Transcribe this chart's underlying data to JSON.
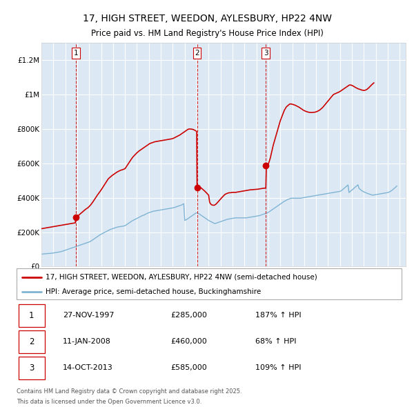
{
  "title1": "17, HIGH STREET, WEEDON, AYLESBURY, HP22 4NW",
  "title2": "Price paid vs. HM Land Registry's House Price Index (HPI)",
  "legend_property": "17, HIGH STREET, WEEDON, AYLESBURY, HP22 4NW (semi-detached house)",
  "legend_hpi": "HPI: Average price, semi-detached house, Buckinghamshire",
  "footer1": "Contains HM Land Registry data © Crown copyright and database right 2025.",
  "footer2": "This data is licensed under the Open Government Licence v3.0.",
  "transactions": [
    {
      "num": 1,
      "date": "27-NOV-1997",
      "price": 285000,
      "note": "187% ↑ HPI"
    },
    {
      "num": 2,
      "date": "11-JAN-2008",
      "price": 460000,
      "note": "68% ↑ HPI"
    },
    {
      "num": 3,
      "date": "14-OCT-2013",
      "price": 585000,
      "note": "109% ↑ HPI"
    }
  ],
  "transaction_dates_decimal": [
    1997.9,
    2008.03,
    2013.79
  ],
  "transaction_prices": [
    285000,
    460000,
    585000
  ],
  "bg_color": "#dce9f5",
  "property_color": "#cc0000",
  "hpi_color": "#7fb3d3",
  "grid_color": "#ffffff",
  "vline_color": "#cc0000",
  "ylim": [
    0,
    1300000
  ],
  "yticks": [
    0,
    200000,
    400000,
    600000,
    800000,
    1000000,
    1200000
  ],
  "ytick_labels": [
    "£0",
    "£200K",
    "£400K",
    "£600K",
    "£800K",
    "£1M",
    "£1.2M"
  ],
  "xlim_start": 1995.0,
  "xlim_end": 2025.5,
  "hpi_dates": [
    1995.0,
    1995.083,
    1995.167,
    1995.25,
    1995.333,
    1995.417,
    1995.5,
    1995.583,
    1995.667,
    1995.75,
    1995.833,
    1995.917,
    1996.0,
    1996.083,
    1996.167,
    1996.25,
    1996.333,
    1996.417,
    1996.5,
    1996.583,
    1996.667,
    1996.75,
    1996.833,
    1996.917,
    1997.0,
    1997.083,
    1997.167,
    1997.25,
    1997.333,
    1997.417,
    1997.5,
    1997.583,
    1997.667,
    1997.75,
    1997.833,
    1997.917,
    1998.0,
    1998.083,
    1998.167,
    1998.25,
    1998.333,
    1998.417,
    1998.5,
    1998.583,
    1998.667,
    1998.75,
    1998.833,
    1998.917,
    1999.0,
    1999.083,
    1999.167,
    1999.25,
    1999.333,
    1999.417,
    1999.5,
    1999.583,
    1999.667,
    1999.75,
    1999.833,
    1999.917,
    2000.0,
    2000.083,
    2000.167,
    2000.25,
    2000.333,
    2000.417,
    2000.5,
    2000.583,
    2000.667,
    2000.75,
    2000.833,
    2000.917,
    2001.0,
    2001.083,
    2001.167,
    2001.25,
    2001.333,
    2001.417,
    2001.5,
    2001.583,
    2001.667,
    2001.75,
    2001.833,
    2001.917,
    2002.0,
    2002.083,
    2002.167,
    2002.25,
    2002.333,
    2002.417,
    2002.5,
    2002.583,
    2002.667,
    2002.75,
    2002.833,
    2002.917,
    2003.0,
    2003.083,
    2003.167,
    2003.25,
    2003.333,
    2003.417,
    2003.5,
    2003.583,
    2003.667,
    2003.75,
    2003.833,
    2003.917,
    2004.0,
    2004.083,
    2004.167,
    2004.25,
    2004.333,
    2004.417,
    2004.5,
    2004.583,
    2004.667,
    2004.75,
    2004.833,
    2004.917,
    2005.0,
    2005.083,
    2005.167,
    2005.25,
    2005.333,
    2005.417,
    2005.5,
    2005.583,
    2005.667,
    2005.75,
    2005.833,
    2005.917,
    2006.0,
    2006.083,
    2006.167,
    2006.25,
    2006.333,
    2006.417,
    2006.5,
    2006.583,
    2006.667,
    2006.75,
    2006.833,
    2006.917,
    2007.0,
    2007.083,
    2007.167,
    2007.25,
    2007.333,
    2007.417,
    2007.5,
    2007.583,
    2007.667,
    2007.75,
    2007.833,
    2007.917,
    2008.0,
    2008.083,
    2008.167,
    2008.25,
    2008.333,
    2008.417,
    2008.5,
    2008.583,
    2008.667,
    2008.75,
    2008.833,
    2008.917,
    2009.0,
    2009.083,
    2009.167,
    2009.25,
    2009.333,
    2009.417,
    2009.5,
    2009.583,
    2009.667,
    2009.75,
    2009.833,
    2009.917,
    2010.0,
    2010.083,
    2010.167,
    2010.25,
    2010.333,
    2010.417,
    2010.5,
    2010.583,
    2010.667,
    2010.75,
    2010.833,
    2010.917,
    2011.0,
    2011.083,
    2011.167,
    2011.25,
    2011.333,
    2011.417,
    2011.5,
    2011.583,
    2011.667,
    2011.75,
    2011.833,
    2011.917,
    2012.0,
    2012.083,
    2012.167,
    2012.25,
    2012.333,
    2012.417,
    2012.5,
    2012.583,
    2012.667,
    2012.75,
    2012.833,
    2012.917,
    2013.0,
    2013.083,
    2013.167,
    2013.25,
    2013.333,
    2013.417,
    2013.5,
    2013.583,
    2013.667,
    2013.75,
    2013.833,
    2013.917,
    2014.0,
    2014.083,
    2014.167,
    2014.25,
    2014.333,
    2014.417,
    2014.5,
    2014.583,
    2014.667,
    2014.75,
    2014.833,
    2014.917,
    2015.0,
    2015.083,
    2015.167,
    2015.25,
    2015.333,
    2015.417,
    2015.5,
    2015.583,
    2015.667,
    2015.75,
    2015.833,
    2015.917,
    2016.0,
    2016.083,
    2016.167,
    2016.25,
    2016.333,
    2016.417,
    2016.5,
    2016.583,
    2016.667,
    2016.75,
    2016.833,
    2016.917,
    2017.0,
    2017.083,
    2017.167,
    2017.25,
    2017.333,
    2017.417,
    2017.5,
    2017.583,
    2017.667,
    2017.75,
    2017.833,
    2017.917,
    2018.0,
    2018.083,
    2018.167,
    2018.25,
    2018.333,
    2018.417,
    2018.5,
    2018.583,
    2018.667,
    2018.75,
    2018.833,
    2018.917,
    2019.0,
    2019.083,
    2019.167,
    2019.25,
    2019.333,
    2019.417,
    2019.5,
    2019.583,
    2019.667,
    2019.75,
    2019.833,
    2019.917,
    2020.0,
    2020.083,
    2020.167,
    2020.25,
    2020.333,
    2020.417,
    2020.5,
    2020.583,
    2020.667,
    2020.75,
    2020.833,
    2020.917,
    2021.0,
    2021.083,
    2021.167,
    2021.25,
    2021.333,
    2021.417,
    2021.5,
    2021.583,
    2021.667,
    2021.75,
    2021.833,
    2021.917,
    2022.0,
    2022.083,
    2022.167,
    2022.25,
    2022.333,
    2022.417,
    2022.5,
    2022.583,
    2022.667,
    2022.75,
    2022.833,
    2022.917,
    2023.0,
    2023.083,
    2023.167,
    2023.25,
    2023.333,
    2023.417,
    2023.5,
    2023.583,
    2023.667,
    2023.75,
    2023.833,
    2023.917,
    2024.0,
    2024.083,
    2024.167,
    2024.25,
    2024.333,
    2024.417,
    2024.5,
    2024.583,
    2024.667,
    2024.75,
    2024.833,
    2024.917,
    2025.0
  ],
  "hpi_values": [
    72000,
    73000,
    73500,
    74000,
    74500,
    75000,
    75500,
    76000,
    76500,
    77000,
    77500,
    78000,
    79000,
    80000,
    81000,
    82000,
    83000,
    84000,
    85000,
    86000,
    87500,
    89000,
    91000,
    93000,
    95000,
    97000,
    99000,
    101000,
    103000,
    105000,
    107000,
    109000,
    111000,
    113000,
    115000,
    117000,
    119000,
    121000,
    123000,
    125000,
    127000,
    129000,
    131000,
    133000,
    135000,
    137000,
    139000,
    141000,
    143000,
    146000,
    149000,
    153000,
    157000,
    161000,
    165000,
    169000,
    173000,
    177000,
    181000,
    185000,
    188000,
    191000,
    194000,
    197000,
    200000,
    203000,
    206000,
    209000,
    212000,
    215000,
    217000,
    219000,
    221000,
    223000,
    225000,
    227000,
    229000,
    230000,
    231000,
    232000,
    233000,
    234000,
    235000,
    236000,
    238000,
    241000,
    245000,
    249000,
    253000,
    257000,
    261000,
    265000,
    268000,
    271000,
    274000,
    277000,
    280000,
    283000,
    286000,
    289000,
    292000,
    295000,
    297000,
    299000,
    302000,
    305000,
    308000,
    311000,
    313000,
    315000,
    317000,
    319000,
    321000,
    322000,
    323000,
    324000,
    325000,
    326000,
    327000,
    328000,
    329000,
    330000,
    331000,
    332000,
    333000,
    334000,
    335000,
    336000,
    337000,
    338000,
    339000,
    340000,
    341000,
    342000,
    344000,
    346000,
    348000,
    350000,
    352000,
    354000,
    356000,
    358000,
    362000,
    365000,
    268000,
    271000,
    274000,
    278000,
    282000,
    286000,
    290000,
    294000,
    298000,
    302000,
    306000,
    310000,
    313000,
    310000,
    307000,
    304000,
    300000,
    296000,
    292000,
    288000,
    284000,
    280000,
    276000,
    272000,
    268000,
    265000,
    262000,
    259000,
    256000,
    253000,
    250000,
    251000,
    253000,
    255000,
    257000,
    259000,
    261000,
    263000,
    265000,
    267000,
    269000,
    271000,
    273000,
    275000,
    276000,
    277000,
    278000,
    279000,
    280000,
    281000,
    282000,
    283000,
    283000,
    283000,
    283000,
    283000,
    283000,
    283000,
    283000,
    283000,
    283000,
    283000,
    283000,
    284000,
    285000,
    286000,
    287000,
    288000,
    289000,
    290000,
    291000,
    292000,
    293000,
    294000,
    295000,
    296000,
    298000,
    300000,
    302000,
    304000,
    306000,
    308000,
    310000,
    312000,
    315000,
    319000,
    323000,
    327000,
    331000,
    335000,
    339000,
    343000,
    347000,
    351000,
    355000,
    359000,
    363000,
    367000,
    371000,
    375000,
    379000,
    382000,
    385000,
    388000,
    391000,
    393000,
    395000,
    397000,
    397000,
    397000,
    397000,
    397000,
    397000,
    397000,
    397000,
    397000,
    397000,
    398000,
    399000,
    400000,
    401000,
    402000,
    403000,
    404000,
    405000,
    406000,
    407000,
    408000,
    409000,
    410000,
    411000,
    412000,
    413000,
    414000,
    415000,
    416000,
    417000,
    418000,
    419000,
    420000,
    421000,
    422000,
    423000,
    424000,
    425000,
    426000,
    427000,
    428000,
    429000,
    430000,
    431000,
    432000,
    433000,
    434000,
    435000,
    436000,
    437000,
    440000,
    444000,
    449000,
    454000,
    459000,
    464000,
    469000,
    474000,
    430000,
    435000,
    440000,
    445000,
    450000,
    455000,
    460000,
    465000,
    470000,
    475000,
    455000,
    450000,
    445000,
    440000,
    437000,
    434000,
    431000,
    429000,
    426000,
    424000,
    422000,
    420000,
    418000,
    416000,
    415000,
    416000,
    417000,
    418000,
    419000,
    420000,
    421000,
    422000,
    423000,
    424000,
    425000,
    426000,
    427000,
    428000,
    429000,
    430000,
    432000,
    435000,
    438000,
    442000,
    447000,
    452000,
    457000,
    462000,
    468000
  ],
  "prop_dates": [
    1995.0,
    1995.083,
    1995.167,
    1995.25,
    1995.333,
    1995.417,
    1995.5,
    1995.583,
    1995.667,
    1995.75,
    1995.833,
    1995.917,
    1996.0,
    1996.083,
    1996.167,
    1996.25,
    1996.333,
    1996.417,
    1996.5,
    1996.583,
    1996.667,
    1996.75,
    1996.833,
    1996.917,
    1997.0,
    1997.083,
    1997.167,
    1997.25,
    1997.333,
    1997.417,
    1997.5,
    1997.583,
    1997.667,
    1997.75,
    1997.833,
    1997.9,
    1997.917,
    1998.0,
    1998.083,
    1998.167,
    1998.25,
    1998.333,
    1998.417,
    1998.5,
    1998.583,
    1998.667,
    1998.75,
    1998.833,
    1998.917,
    1999.0,
    1999.083,
    1999.167,
    1999.25,
    1999.333,
    1999.417,
    1999.5,
    1999.583,
    1999.667,
    1999.75,
    1999.833,
    1999.917,
    2000.0,
    2000.083,
    2000.167,
    2000.25,
    2000.333,
    2000.417,
    2000.5,
    2000.583,
    2000.667,
    2000.75,
    2000.833,
    2000.917,
    2001.0,
    2001.083,
    2001.167,
    2001.25,
    2001.333,
    2001.417,
    2001.5,
    2001.583,
    2001.667,
    2001.75,
    2001.833,
    2001.917,
    2002.0,
    2002.083,
    2002.167,
    2002.25,
    2002.333,
    2002.417,
    2002.5,
    2002.583,
    2002.667,
    2002.75,
    2002.833,
    2002.917,
    2003.0,
    2003.083,
    2003.167,
    2003.25,
    2003.333,
    2003.417,
    2003.5,
    2003.583,
    2003.667,
    2003.75,
    2003.833,
    2003.917,
    2004.0,
    2004.083,
    2004.167,
    2004.25,
    2004.333,
    2004.417,
    2004.5,
    2004.583,
    2004.667,
    2004.75,
    2004.833,
    2004.917,
    2005.0,
    2005.083,
    2005.167,
    2005.25,
    2005.333,
    2005.417,
    2005.5,
    2005.583,
    2005.667,
    2005.75,
    2005.833,
    2005.917,
    2006.0,
    2006.083,
    2006.167,
    2006.25,
    2006.333,
    2006.417,
    2006.5,
    2006.583,
    2006.667,
    2006.75,
    2006.833,
    2006.917,
    2007.0,
    2007.083,
    2007.167,
    2007.25,
    2007.333,
    2007.417,
    2007.5,
    2007.583,
    2007.667,
    2007.75,
    2007.833,
    2007.917,
    2008.0,
    2008.03,
    2008.083,
    2008.167,
    2008.25,
    2008.333,
    2008.417,
    2008.5,
    2008.583,
    2008.667,
    2008.75,
    2008.833,
    2008.917,
    2009.0,
    2009.083,
    2009.167,
    2009.25,
    2009.333,
    2009.417,
    2009.5,
    2009.583,
    2009.667,
    2009.75,
    2009.833,
    2009.917,
    2010.0,
    2010.083,
    2010.167,
    2010.25,
    2010.333,
    2010.417,
    2010.5,
    2010.583,
    2010.667,
    2010.75,
    2010.833,
    2010.917,
    2011.0,
    2011.083,
    2011.167,
    2011.25,
    2011.333,
    2011.417,
    2011.5,
    2011.583,
    2011.667,
    2011.75,
    2011.833,
    2011.917,
    2012.0,
    2012.083,
    2012.167,
    2012.25,
    2012.333,
    2012.417,
    2012.5,
    2012.583,
    2012.667,
    2012.75,
    2012.833,
    2012.917,
    2013.0,
    2013.083,
    2013.167,
    2013.25,
    2013.333,
    2013.417,
    2013.5,
    2013.583,
    2013.667,
    2013.75,
    2013.79,
    2013.833,
    2013.917,
    2014.0,
    2014.083,
    2014.167,
    2014.25,
    2014.333,
    2014.417,
    2014.5,
    2014.583,
    2014.667,
    2014.75,
    2014.833,
    2014.917,
    2015.0,
    2015.083,
    2015.167,
    2015.25,
    2015.333,
    2015.417,
    2015.5,
    2015.583,
    2015.667,
    2015.75,
    2015.833,
    2015.917,
    2016.0,
    2016.083,
    2016.167,
    2016.25,
    2016.333,
    2016.417,
    2016.5,
    2016.583,
    2016.667,
    2016.75,
    2016.833,
    2016.917,
    2017.0,
    2017.083,
    2017.167,
    2017.25,
    2017.333,
    2017.417,
    2017.5,
    2017.583,
    2017.667,
    2017.75,
    2017.833,
    2017.917,
    2018.0,
    2018.083,
    2018.167,
    2018.25,
    2018.333,
    2018.417,
    2018.5,
    2018.583,
    2018.667,
    2018.75,
    2018.833,
    2018.917,
    2019.0,
    2019.083,
    2019.167,
    2019.25,
    2019.333,
    2019.417,
    2019.5,
    2019.583,
    2019.667,
    2019.75,
    2019.833,
    2019.917,
    2020.0,
    2020.083,
    2020.167,
    2020.25,
    2020.333,
    2020.417,
    2020.5,
    2020.583,
    2020.667,
    2020.75,
    2020.833,
    2020.917,
    2021.0,
    2021.083,
    2021.167,
    2021.25,
    2021.333,
    2021.417,
    2021.5,
    2021.583,
    2021.667,
    2021.75,
    2021.833,
    2021.917,
    2022.0,
    2022.083,
    2022.167,
    2022.25,
    2022.333,
    2022.417,
    2022.5,
    2022.583,
    2022.667,
    2022.75,
    2022.833,
    2022.917,
    2023.0,
    2023.083,
    2023.167,
    2023.25,
    2023.333,
    2023.417,
    2023.5,
    2023.583,
    2023.667,
    2023.75,
    2023.833,
    2023.917,
    2024.0,
    2024.083,
    2024.167,
    2024.25,
    2024.333,
    2024.417,
    2024.5,
    2024.583,
    2024.667,
    2024.75,
    2024.833,
    2024.917,
    2025.0
  ],
  "prop_values": [
    220000,
    221000,
    222000,
    223000,
    224000,
    225000,
    226000,
    227000,
    228000,
    229000,
    230000,
    231000,
    232000,
    233000,
    234000,
    235000,
    236000,
    237000,
    238000,
    239000,
    240000,
    241000,
    242000,
    243000,
    244000,
    245000,
    246000,
    247000,
    248000,
    249000,
    250000,
    251000,
    252000,
    253000,
    254000,
    285000,
    287000,
    291000,
    296000,
    301000,
    306000,
    311000,
    316000,
    321000,
    326000,
    331000,
    335000,
    339000,
    343000,
    349000,
    355000,
    362000,
    370000,
    378000,
    387000,
    396000,
    405000,
    413000,
    421000,
    429000,
    437000,
    445000,
    454000,
    463000,
    472000,
    481000,
    490000,
    499000,
    508000,
    514000,
    519000,
    524000,
    529000,
    533000,
    537000,
    541000,
    545000,
    549000,
    552000,
    555000,
    558000,
    560000,
    562000,
    564000,
    566000,
    569000,
    577000,
    586000,
    595000,
    604000,
    613000,
    621000,
    629000,
    637000,
    643000,
    649000,
    655000,
    661000,
    666000,
    671000,
    675000,
    679000,
    683000,
    687000,
    691000,
    695000,
    699000,
    703000,
    707000,
    711000,
    715000,
    717000,
    719000,
    721000,
    723000,
    725000,
    726000,
    727000,
    728000,
    729000,
    730000,
    731000,
    732000,
    733000,
    734000,
    735000,
    736000,
    737000,
    738000,
    739000,
    740000,
    741000,
    742000,
    744000,
    746000,
    749000,
    752000,
    755000,
    758000,
    761000,
    764000,
    768000,
    772000,
    776000,
    780000,
    784000,
    788000,
    792000,
    796000,
    799000,
    799000,
    799000,
    798000,
    797000,
    795000,
    792000,
    789000,
    784000,
    460000,
    462000,
    463000,
    461000,
    459000,
    454000,
    449000,
    444000,
    439000,
    433000,
    427000,
    421000,
    415000,
    374000,
    364000,
    359000,
    357000,
    356000,
    357000,
    361000,
    366000,
    373000,
    379000,
    386000,
    392000,
    399000,
    405000,
    411000,
    417000,
    421000,
    424000,
    426000,
    428000,
    429000,
    429000,
    430000,
    431000,
    431000,
    431000,
    431000,
    432000,
    433000,
    434000,
    435000,
    436000,
    437000,
    438000,
    439000,
    440000,
    441000,
    442000,
    443000,
    444000,
    445000,
    446000,
    446000,
    447000,
    447000,
    448000,
    448000,
    449000,
    449000,
    450000,
    451000,
    452000,
    453000,
    454000,
    455000,
    455000,
    456000,
    457000,
    585000,
    591000,
    597000,
    612000,
    632000,
    657000,
    682000,
    707000,
    727000,
    747000,
    767000,
    787000,
    807000,
    827000,
    847000,
    862000,
    877000,
    892000,
    907000,
    917000,
    927000,
    932000,
    937000,
    942000,
    945000,
    944000,
    943000,
    941000,
    939000,
    937000,
    934000,
    931000,
    928000,
    925000,
    921000,
    917000,
    913000,
    909000,
    906000,
    903000,
    901000,
    899000,
    897000,
    896000,
    895000,
    895000,
    895000,
    896000,
    896000,
    897000,
    899000,
    901000,
    904000,
    907000,
    911000,
    916000,
    921000,
    927000,
    934000,
    941000,
    948000,
    955000,
    962000,
    969000,
    976000,
    983000,
    990000,
    997000,
    1001000,
    1004000,
    1006000,
    1009000,
    1011000,
    1014000,
    1017000,
    1021000,
    1025000,
    1029000,
    1033000,
    1037000,
    1041000,
    1045000,
    1049000,
    1053000,
    1055000,
    1054000,
    1052000,
    1049000,
    1046000,
    1042000,
    1039000,
    1036000,
    1033000,
    1031000,
    1029000,
    1027000,
    1025000,
    1024000,
    1023000,
    1024000,
    1026000,
    1029000,
    1034000,
    1039000,
    1045000,
    1051000,
    1057000,
    1062000,
    1067000
  ]
}
